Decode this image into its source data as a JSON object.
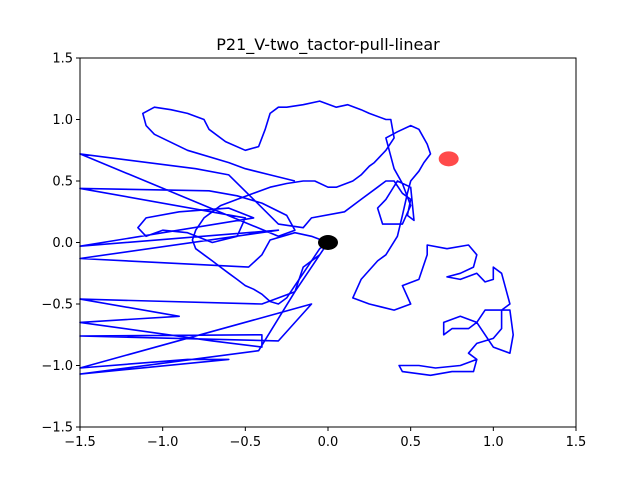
{
  "chart_data": {
    "type": "line",
    "title": "P21_V-two_tactor-pull-linear",
    "xlabel": "",
    "ylabel": "",
    "xlim": [
      -1.5,
      1.5
    ],
    "ylim": [
      -1.5,
      1.5
    ],
    "x_ticks": [
      -1.5,
      -1.0,
      -0.5,
      0.0,
      0.5,
      1.0,
      1.5
    ],
    "x_tick_labels": [
      "−1.5",
      "−1.0",
      "−0.5",
      "0.0",
      "0.5",
      "1.0",
      "1.5"
    ],
    "y_ticks": [
      -1.5,
      -1.0,
      -0.5,
      0.0,
      0.5,
      1.0,
      1.5
    ],
    "y_tick_labels": [
      "−1.5",
      "−1.0",
      "−0.5",
      "0.0",
      "0.5",
      "1.0",
      "1.5"
    ],
    "grid": false,
    "colors": {
      "trajectory": "#0000ff",
      "start_marker": "#000000",
      "target_marker": "#ff2a2a"
    },
    "series": [
      {
        "type": "line",
        "points": [
          [
            0.0,
            0.0
          ],
          [
            -0.1,
            0.05
          ],
          [
            -0.2,
            0.08
          ],
          [
            -0.35,
            0.02
          ],
          [
            -0.4,
            -0.1
          ],
          [
            -0.48,
            -0.2
          ],
          [
            -1.5,
            -0.13
          ],
          [
            -0.3,
            0.1
          ],
          [
            -1.5,
            -0.03
          ],
          [
            -0.45,
            0.2
          ],
          [
            -0.6,
            0.28
          ],
          [
            -0.9,
            0.25
          ],
          [
            -1.1,
            0.2
          ],
          [
            -1.15,
            0.12
          ],
          [
            -1.1,
            0.05
          ],
          [
            -1.0,
            0.1
          ],
          [
            -0.85,
            0.08
          ],
          [
            -0.7,
            0.0
          ],
          [
            -0.55,
            0.05
          ],
          [
            -0.5,
            0.2
          ],
          [
            -1.5,
            0.44
          ],
          [
            -0.72,
            0.42
          ],
          [
            -0.55,
            0.38
          ],
          [
            -0.4,
            0.32
          ],
          [
            -0.25,
            0.22
          ],
          [
            -0.2,
            0.1
          ],
          [
            -0.3,
            0.05
          ],
          [
            -1.5,
            0.72
          ],
          [
            -0.8,
            0.6
          ],
          [
            -0.6,
            0.55
          ],
          [
            -0.45,
            0.35
          ],
          [
            -0.3,
            0.15
          ],
          [
            -0.15,
            0.12
          ],
          [
            -0.1,
            0.2
          ],
          [
            0.1,
            0.25
          ],
          [
            0.2,
            0.35
          ],
          [
            0.3,
            0.45
          ],
          [
            0.35,
            0.5
          ],
          [
            0.4,
            0.5
          ],
          [
            0.45,
            0.4
          ],
          [
            0.5,
            0.35
          ],
          [
            0.48,
            0.22
          ],
          [
            0.52,
            0.18
          ],
          [
            0.5,
            0.45
          ],
          [
            0.42,
            0.5
          ],
          [
            0.35,
            0.35
          ],
          [
            0.3,
            0.28
          ],
          [
            0.33,
            0.15
          ],
          [
            0.45,
            0.15
          ],
          [
            0.5,
            0.3
          ],
          [
            0.45,
            0.48
          ],
          [
            0.4,
            0.6
          ],
          [
            0.35,
            0.85
          ],
          [
            0.42,
            0.9
          ],
          [
            0.5,
            0.95
          ],
          [
            0.55,
            0.92
          ],
          [
            0.6,
            0.8
          ],
          [
            0.62,
            0.72
          ],
          [
            0.58,
            0.65
          ],
          [
            0.55,
            0.58
          ],
          [
            0.5,
            0.5
          ],
          [
            0.48,
            0.4
          ],
          [
            0.45,
            0.22
          ],
          [
            0.42,
            0.05
          ],
          [
            0.35,
            -0.1
          ],
          [
            0.3,
            -0.15
          ],
          [
            0.2,
            -0.3
          ],
          [
            0.15,
            -0.45
          ],
          [
            0.25,
            -0.5
          ],
          [
            0.4,
            -0.55
          ],
          [
            0.5,
            -0.5
          ],
          [
            0.45,
            -0.35
          ],
          [
            0.55,
            -0.3
          ],
          [
            0.6,
            -0.1
          ],
          [
            0.6,
            -0.02
          ],
          [
            0.72,
            -0.05
          ],
          [
            0.85,
            -0.02
          ],
          [
            0.9,
            -0.1
          ],
          [
            0.88,
            -0.2
          ],
          [
            0.8,
            -0.25
          ],
          [
            0.72,
            -0.28
          ],
          [
            0.8,
            -0.3
          ],
          [
            0.9,
            -0.25
          ],
          [
            0.95,
            -0.32
          ],
          [
            1.0,
            -0.3
          ],
          [
            1.0,
            -0.2
          ],
          [
            1.05,
            -0.25
          ],
          [
            1.1,
            -0.5
          ],
          [
            1.05,
            -0.55
          ],
          [
            0.95,
            -0.55
          ],
          [
            0.9,
            -0.65
          ],
          [
            0.85,
            -0.7
          ],
          [
            0.75,
            -0.7
          ],
          [
            0.7,
            -0.75
          ],
          [
            0.7,
            -0.65
          ],
          [
            0.8,
            -0.6
          ],
          [
            0.9,
            -0.65
          ],
          [
            0.95,
            -0.75
          ],
          [
            1.0,
            -0.85
          ],
          [
            1.1,
            -0.9
          ],
          [
            1.12,
            -0.75
          ],
          [
            1.1,
            -0.55
          ],
          [
            1.05,
            -0.55
          ],
          [
            1.05,
            -0.7
          ],
          [
            1.0,
            -0.78
          ],
          [
            0.9,
            -0.82
          ],
          [
            0.85,
            -0.9
          ],
          [
            0.9,
            -0.95
          ],
          [
            0.88,
            -1.05
          ],
          [
            0.75,
            -1.05
          ],
          [
            0.62,
            -1.08
          ],
          [
            0.45,
            -1.05
          ],
          [
            0.43,
            -1.0
          ],
          [
            0.55,
            -1.0
          ],
          [
            0.65,
            -1.02
          ],
          [
            0.8,
            -1.0
          ],
          [
            0.9,
            -0.95
          ]
        ]
      },
      {
        "type": "line",
        "points": [
          [
            0.0,
            0.0
          ],
          [
            -0.05,
            -0.1
          ],
          [
            -0.15,
            -0.2
          ],
          [
            -0.2,
            -0.4
          ],
          [
            -0.3,
            -0.45
          ],
          [
            -0.4,
            -0.5
          ],
          [
            -1.5,
            -0.46
          ],
          [
            -0.9,
            -0.6
          ],
          [
            -1.5,
            -0.65
          ],
          [
            -0.7,
            -0.8
          ],
          [
            -0.4,
            -0.85
          ],
          [
            -0.4,
            -0.75
          ],
          [
            -1.5,
            -0.76
          ],
          [
            -0.3,
            -0.8
          ],
          [
            -0.1,
            -0.5
          ],
          [
            -1.5,
            -1.02
          ],
          [
            -0.85,
            -0.95
          ],
          [
            -0.6,
            -0.95
          ],
          [
            -1.5,
            -1.07
          ],
          [
            -0.42,
            -0.88
          ],
          [
            -0.2,
            -0.4
          ],
          [
            -0.1,
            -0.2
          ],
          [
            -0.05,
            -0.1
          ]
        ]
      },
      {
        "type": "line",
        "points": [
          [
            -0.2,
            0.5
          ],
          [
            -0.35,
            0.55
          ],
          [
            -0.5,
            0.6
          ],
          [
            -0.6,
            0.65
          ],
          [
            -0.85,
            0.75
          ],
          [
            -1.05,
            0.88
          ],
          [
            -1.1,
            0.95
          ],
          [
            -1.12,
            1.05
          ],
          [
            -1.05,
            1.1
          ],
          [
            -0.95,
            1.08
          ],
          [
            -0.85,
            1.05
          ],
          [
            -0.75,
            1.0
          ],
          [
            -0.72,
            0.92
          ],
          [
            -0.62,
            0.82
          ],
          [
            -0.5,
            0.75
          ],
          [
            -0.42,
            0.78
          ],
          [
            -0.38,
            0.92
          ],
          [
            -0.35,
            1.05
          ],
          [
            -0.3,
            1.1
          ],
          [
            -0.25,
            1.1
          ],
          [
            -0.15,
            1.12
          ],
          [
            -0.05,
            1.15
          ],
          [
            0.05,
            1.1
          ],
          [
            0.12,
            1.12
          ],
          [
            0.2,
            1.08
          ],
          [
            0.25,
            1.05
          ],
          [
            0.35,
            1.0
          ],
          [
            0.38,
            1.0
          ],
          [
            0.4,
            0.85
          ],
          [
            0.35,
            0.75
          ],
          [
            0.28,
            0.65
          ],
          [
            0.25,
            0.62
          ],
          [
            0.2,
            0.55
          ],
          [
            0.15,
            0.5
          ],
          [
            0.05,
            0.45
          ],
          [
            0.0,
            0.45
          ],
          [
            -0.08,
            0.5
          ],
          [
            -0.15,
            0.5
          ],
          [
            -0.25,
            0.48
          ],
          [
            -0.35,
            0.45
          ],
          [
            -0.45,
            0.4
          ],
          [
            -0.55,
            0.35
          ],
          [
            -0.65,
            0.3
          ],
          [
            -0.7,
            0.25
          ],
          [
            -0.75,
            0.2
          ],
          [
            -0.8,
            0.1
          ],
          [
            -0.82,
            0.02
          ],
          [
            -0.8,
            -0.05
          ],
          [
            -0.75,
            -0.1
          ],
          [
            -0.7,
            -0.15
          ],
          [
            -0.65,
            -0.2
          ],
          [
            -0.6,
            -0.25
          ],
          [
            -0.55,
            -0.3
          ],
          [
            -0.5,
            -0.35
          ],
          [
            -0.45,
            -0.38
          ],
          [
            -0.4,
            -0.42
          ],
          [
            -0.35,
            -0.48
          ],
          [
            -0.3,
            -0.5
          ],
          [
            -0.25,
            -0.45
          ],
          [
            -0.2,
            -0.35
          ],
          [
            -0.15,
            -0.25
          ],
          [
            -0.1,
            -0.15
          ],
          [
            -0.05,
            -0.05
          ],
          [
            0.0,
            0.0
          ]
        ]
      }
    ],
    "markers": [
      {
        "name": "",
        "x": 0.0,
        "y": 0.0,
        "color": "#000000"
      },
      {
        "name": "",
        "x": 0.73,
        "y": 0.68,
        "color": "#ff2a2a"
      }
    ]
  }
}
